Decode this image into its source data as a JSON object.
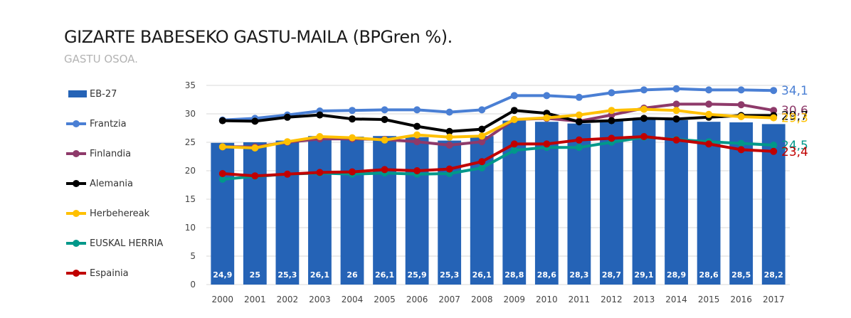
{
  "title": "GIZARTE BABESEKO GASTU-MAILA (BPGren %).",
  "subtitle": "GASTU OSOA.",
  "chart_data": {
    "type": "bar",
    "categories": [
      "2000",
      "2001",
      "2002",
      "2003",
      "2004",
      "2005",
      "2006",
      "2007",
      "2008",
      "2009",
      "2010",
      "2011",
      "2012",
      "2013",
      "2014",
      "2015",
      "2016",
      "2017"
    ],
    "ylim": [
      0,
      35
    ],
    "yticks": [
      0,
      5,
      10,
      15,
      20,
      25,
      30,
      35
    ],
    "grid": true,
    "legend_position": "left",
    "bar_series": {
      "name": "EB-27",
      "color": "#2563b6",
      "values": [
        24.9,
        25,
        25.3,
        26.1,
        26,
        26.1,
        25.9,
        25.3,
        26.1,
        28.8,
        28.6,
        28.3,
        28.7,
        29.1,
        28.9,
        28.6,
        28.5,
        28.2
      ],
      "labels": [
        "24,9",
        "25",
        "25,3",
        "26,1",
        "26",
        "26,1",
        "25,9",
        "25,3",
        "26,1",
        "28,8",
        "28,6",
        "28,3",
        "28,7",
        "29,1",
        "28,9",
        "28,6",
        "28,5",
        "28,2"
      ]
    },
    "line_series": [
      {
        "name": "Frantzia",
        "color": "#4a7fd4",
        "values": [
          28.9,
          29.2,
          29.8,
          30.5,
          30.6,
          30.7,
          30.7,
          30.3,
          30.7,
          33.2,
          33.2,
          32.9,
          33.7,
          34.2,
          34.4,
          34.2,
          34.2,
          34.1
        ],
        "end_label": "34,1"
      },
      {
        "name": "Finlandia",
        "color": "#8e3a6a",
        "values": [
          24.2,
          24.2,
          25.0,
          25.6,
          25.6,
          25.5,
          25.1,
          24.5,
          25.1,
          29.0,
          29.2,
          28.7,
          29.8,
          31.0,
          31.7,
          31.7,
          31.6,
          30.6
        ],
        "end_label": "30,6"
      },
      {
        "name": "Alemania",
        "color": "#000000",
        "values": [
          28.8,
          28.7,
          29.4,
          29.8,
          29.1,
          29.0,
          27.8,
          26.9,
          27.3,
          30.6,
          30.1,
          28.6,
          28.8,
          29.2,
          29.1,
          29.4,
          29.7,
          29.7
        ],
        "end_label": "29,7"
      },
      {
        "name": "Herbehereak",
        "color": "#ffc000",
        "values": [
          24.2,
          24.0,
          25.1,
          26.0,
          25.8,
          25.4,
          26.3,
          25.9,
          26.1,
          29.0,
          29.3,
          29.8,
          30.6,
          30.8,
          30.6,
          29.9,
          29.5,
          29.3
        ],
        "end_label": "29,3"
      },
      {
        "name": "EUSKAL HERRIA",
        "color": "#00988a",
        "values": [
          18.5,
          19.0,
          19.4,
          19.6,
          19.4,
          19.6,
          19.4,
          19.5,
          20.5,
          23.6,
          24.1,
          24.1,
          25.0,
          25.9,
          25.5,
          25.1,
          24.8,
          24.5
        ],
        "end_label": "24,5"
      },
      {
        "name": "Espainia",
        "color": "#c00000",
        "values": [
          19.5,
          19.1,
          19.4,
          19.7,
          19.8,
          20.2,
          20.0,
          20.3,
          21.6,
          24.7,
          24.7,
          25.4,
          25.7,
          26.0,
          25.4,
          24.7,
          23.7,
          23.4
        ],
        "end_label": "23,4"
      }
    ]
  }
}
